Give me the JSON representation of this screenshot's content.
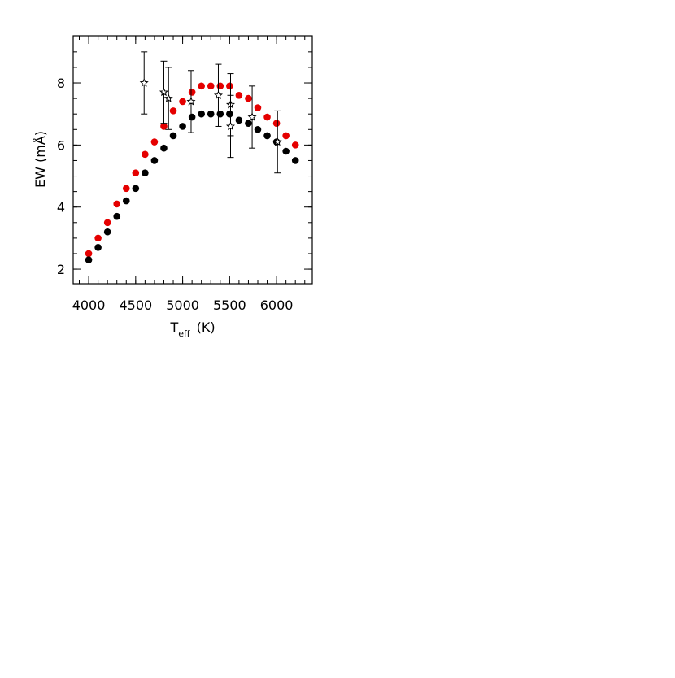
{
  "chart_data": {
    "type": "scatter",
    "xlabel": {
      "main": "T",
      "subscript": "eff",
      "unit": "(K)"
    },
    "ylabel": "EW (mÅ)",
    "xlim": [
      3835,
      6380
    ],
    "ylim": [
      1.53,
      9.52
    ],
    "xticks": [
      4000,
      4500,
      5000,
      5500,
      6000
    ],
    "yticks": [
      2,
      4,
      6,
      8
    ],
    "xminorticks": [
      3900,
      4000,
      4100,
      4200,
      4300,
      4400,
      4500,
      4600,
      4700,
      4800,
      4900,
      5000,
      5100,
      5200,
      5300,
      5400,
      5500,
      5600,
      5700,
      5800,
      5900,
      6000,
      6100,
      6200,
      6300
    ],
    "yminorticks": [
      2,
      2.5,
      3,
      3.5,
      4,
      4.5,
      5,
      5.5,
      6,
      6.5,
      7,
      7.5,
      8,
      8.5,
      9
    ],
    "series": [
      {
        "color": "#e50000",
        "marker": "dot",
        "x": [
          4000,
          4100,
          4200,
          4300,
          4400,
          4500,
          4600,
          4700,
          4800,
          4900,
          5000,
          5100,
          5200,
          5300,
          5400,
          5500,
          5600,
          5700,
          5800,
          5900,
          6000,
          6100,
          6200
        ],
        "values": [
          2.5,
          3.0,
          3.5,
          4.1,
          4.6,
          5.1,
          5.7,
          6.1,
          6.6,
          7.1,
          7.4,
          7.7,
          7.9,
          7.9,
          7.9,
          7.9,
          7.6,
          7.5,
          7.2,
          6.9,
          6.7,
          6.3,
          6.0
        ]
      },
      {
        "color": "#000000",
        "marker": "dot",
        "x": [
          4000,
          4100,
          4200,
          4300,
          4400,
          4500,
          4600,
          4700,
          4800,
          4900,
          5000,
          5100,
          5200,
          5300,
          5400,
          5500,
          5600,
          5700,
          5800,
          5900,
          6000,
          6100,
          6200
        ],
        "values": [
          2.3,
          2.7,
          3.2,
          3.7,
          4.2,
          4.6,
          5.1,
          5.5,
          5.9,
          6.3,
          6.6,
          6.9,
          7.0,
          7.0,
          7.0,
          7.0,
          6.8,
          6.7,
          6.5,
          6.3,
          6.1,
          5.8,
          5.5
        ]
      },
      {
        "color": "#000000",
        "marker": "star",
        "x": [
          4590,
          4800,
          4850,
          5090,
          5380,
          5510,
          5510,
          5740,
          6010
        ],
        "values": [
          8.0,
          7.7,
          7.5,
          7.4,
          7.6,
          7.3,
          6.6,
          6.9,
          6.1
        ],
        "errors": [
          1.0,
          1.0,
          1.0,
          1.0,
          1.0,
          1.0,
          1.0,
          1.0,
          1.0
        ]
      }
    ]
  }
}
